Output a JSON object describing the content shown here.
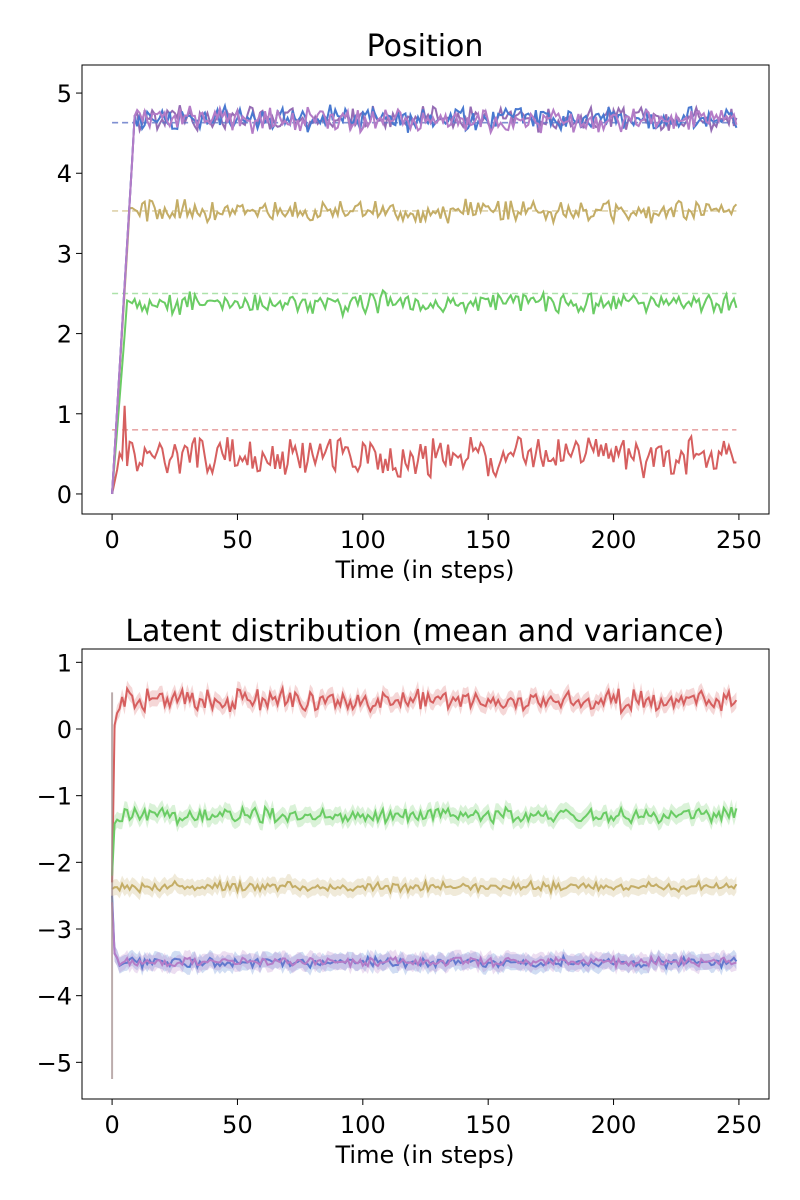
{
  "chart_data": [
    {
      "type": "line",
      "title": "Position",
      "xlabel": "Time (in steps)",
      "ylabel": "",
      "xlim": [
        -12,
        262
      ],
      "ylim": [
        -0.25,
        5.35
      ],
      "xticks": [
        0,
        50,
        100,
        150,
        200,
        250
      ],
      "yticks": [
        0,
        1,
        2,
        3,
        4,
        5
      ],
      "x_tick_labels": [
        "0",
        "50",
        "100",
        "150",
        "200",
        "250"
      ],
      "y_tick_labels": [
        "0",
        "1",
        "2",
        "3",
        "4",
        "5"
      ],
      "n_steps": 250,
      "grid": false,
      "series": [
        {
          "color": "#d65f5f",
          "target": 0.8,
          "start": 0.0,
          "rise_step": 3,
          "level": 0.45,
          "noise": 0.16,
          "peak": {
            "x": 5,
            "y": 1.1
          }
        },
        {
          "color": "#6acc64",
          "target": 2.5,
          "start": 0.0,
          "rise_step": 6,
          "level": 2.38,
          "noise": 0.09
        },
        {
          "color": "#c4ad66",
          "target": 3.53,
          "start": 0.0,
          "rise_step": 7,
          "level": 3.53,
          "noise": 0.09
        },
        {
          "color": "#956cb4",
          "target": 4.63,
          "start": 0.0,
          "rise_step": 9,
          "level": 4.68,
          "noise": 0.1
        },
        {
          "color": "#4878d0",
          "target": 4.63,
          "start": 0.0,
          "rise_step": 9,
          "level": 4.68,
          "noise": 0.1
        },
        {
          "color": "#b47cc7",
          "target": null,
          "start": 0.0,
          "rise_step": 9,
          "level": 4.67,
          "noise": 0.11
        }
      ]
    },
    {
      "type": "line",
      "title": "Latent distribution (mean and variance)",
      "xlabel": "Time (in steps)",
      "ylabel": "",
      "xlim": [
        -12,
        262
      ],
      "ylim": [
        -5.55,
        1.2
      ],
      "xticks": [
        0,
        50,
        100,
        150,
        200,
        250
      ],
      "yticks": [
        1,
        0,
        -1,
        -2,
        -3,
        -4,
        -5
      ],
      "x_tick_labels": [
        "0",
        "50",
        "100",
        "150",
        "200",
        "250"
      ],
      "y_tick_labels": [
        "1",
        "0",
        "−1",
        "−2",
        "−3",
        "−4",
        "−5"
      ],
      "n_steps": 250,
      "grid": false,
      "band_width": 0.12,
      "series": [
        {
          "color": "#d65f5f",
          "start": -2.3,
          "level": 0.42,
          "noise": 0.11
        },
        {
          "color": "#6acc64",
          "start": -2.2,
          "level": -1.3,
          "noise": 0.08
        },
        {
          "color": "#c4ad66",
          "start": -2.4,
          "level": -2.37,
          "noise": 0.05
        },
        {
          "color": "#4878d0",
          "start": -2.5,
          "level": -3.5,
          "noise": 0.05
        },
        {
          "color": "#b47cc7",
          "start": -2.6,
          "level": -3.49,
          "noise": 0.05
        }
      ],
      "initial_spike": {
        "x": 0,
        "high": 0.55,
        "low": -5.25
      }
    }
  ]
}
